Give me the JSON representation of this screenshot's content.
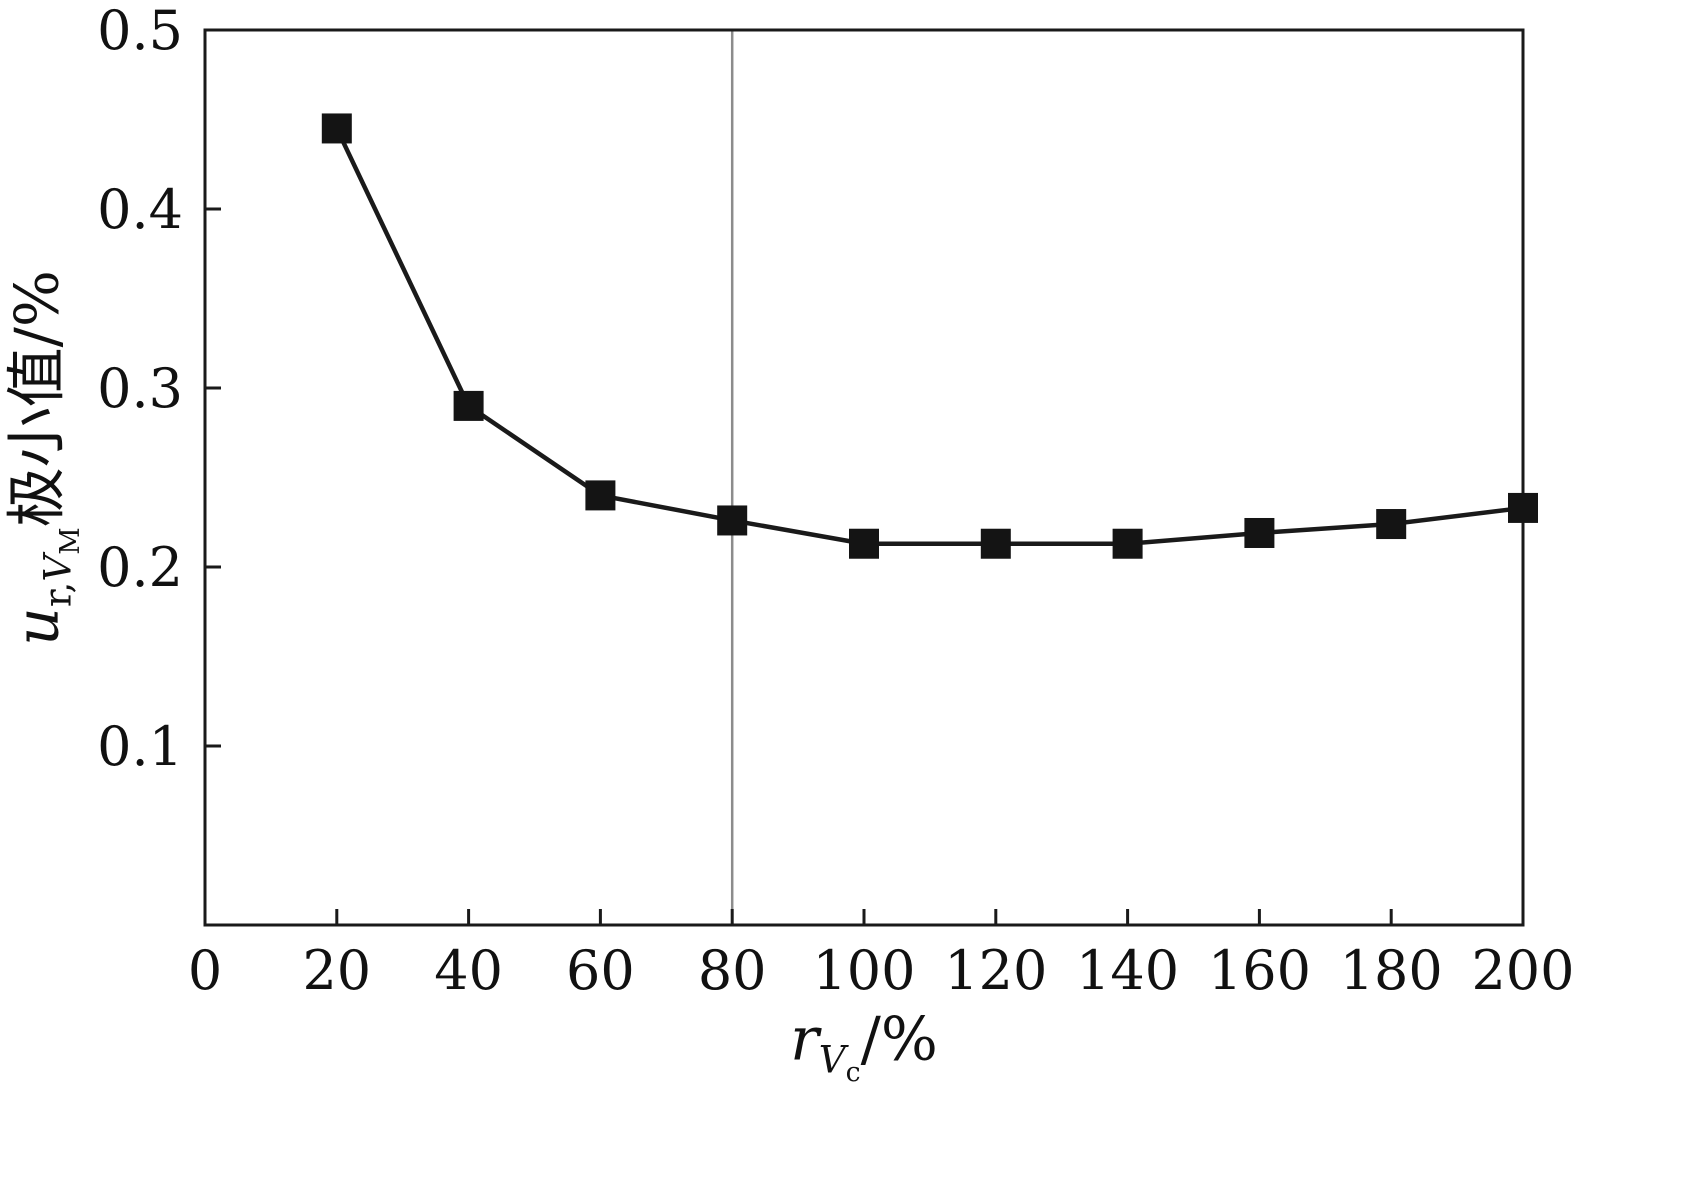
{
  "figure": {
    "background": "#ffffff"
  },
  "axis_labels": {
    "y": {
      "main": "u",
      "sub_prefix": "r,",
      "sub_var": "V",
      "subsub": "M",
      "suffix": "极小值/%"
    },
    "x": {
      "main": "r",
      "sub_var": "V",
      "subsub": "c",
      "suffix": "/%"
    }
  },
  "chart_data": {
    "type": "line",
    "title": "",
    "xlabel": "r_Vc/%",
    "ylabel": "u_r,V_M 极小值/%",
    "x": [
      20,
      40,
      60,
      80,
      100,
      120,
      140,
      160,
      180,
      200
    ],
    "y": [
      0.445,
      0.29,
      0.24,
      0.226,
      0.213,
      0.213,
      0.213,
      0.219,
      0.224,
      0.233
    ],
    "xlim": [
      0,
      200
    ],
    "ylim": [
      0,
      0.5
    ],
    "x_ticks": [
      0,
      20,
      40,
      60,
      80,
      100,
      120,
      140,
      160,
      180,
      200
    ],
    "y_ticks": [
      0.1,
      0.2,
      0.3,
      0.4,
      0.5
    ],
    "marker": "square",
    "marker_color": "#141414",
    "line_color": "#1a1a1a",
    "vline_x": 80,
    "vline_color": "#8c8c8c",
    "grid": false,
    "legend": null
  }
}
